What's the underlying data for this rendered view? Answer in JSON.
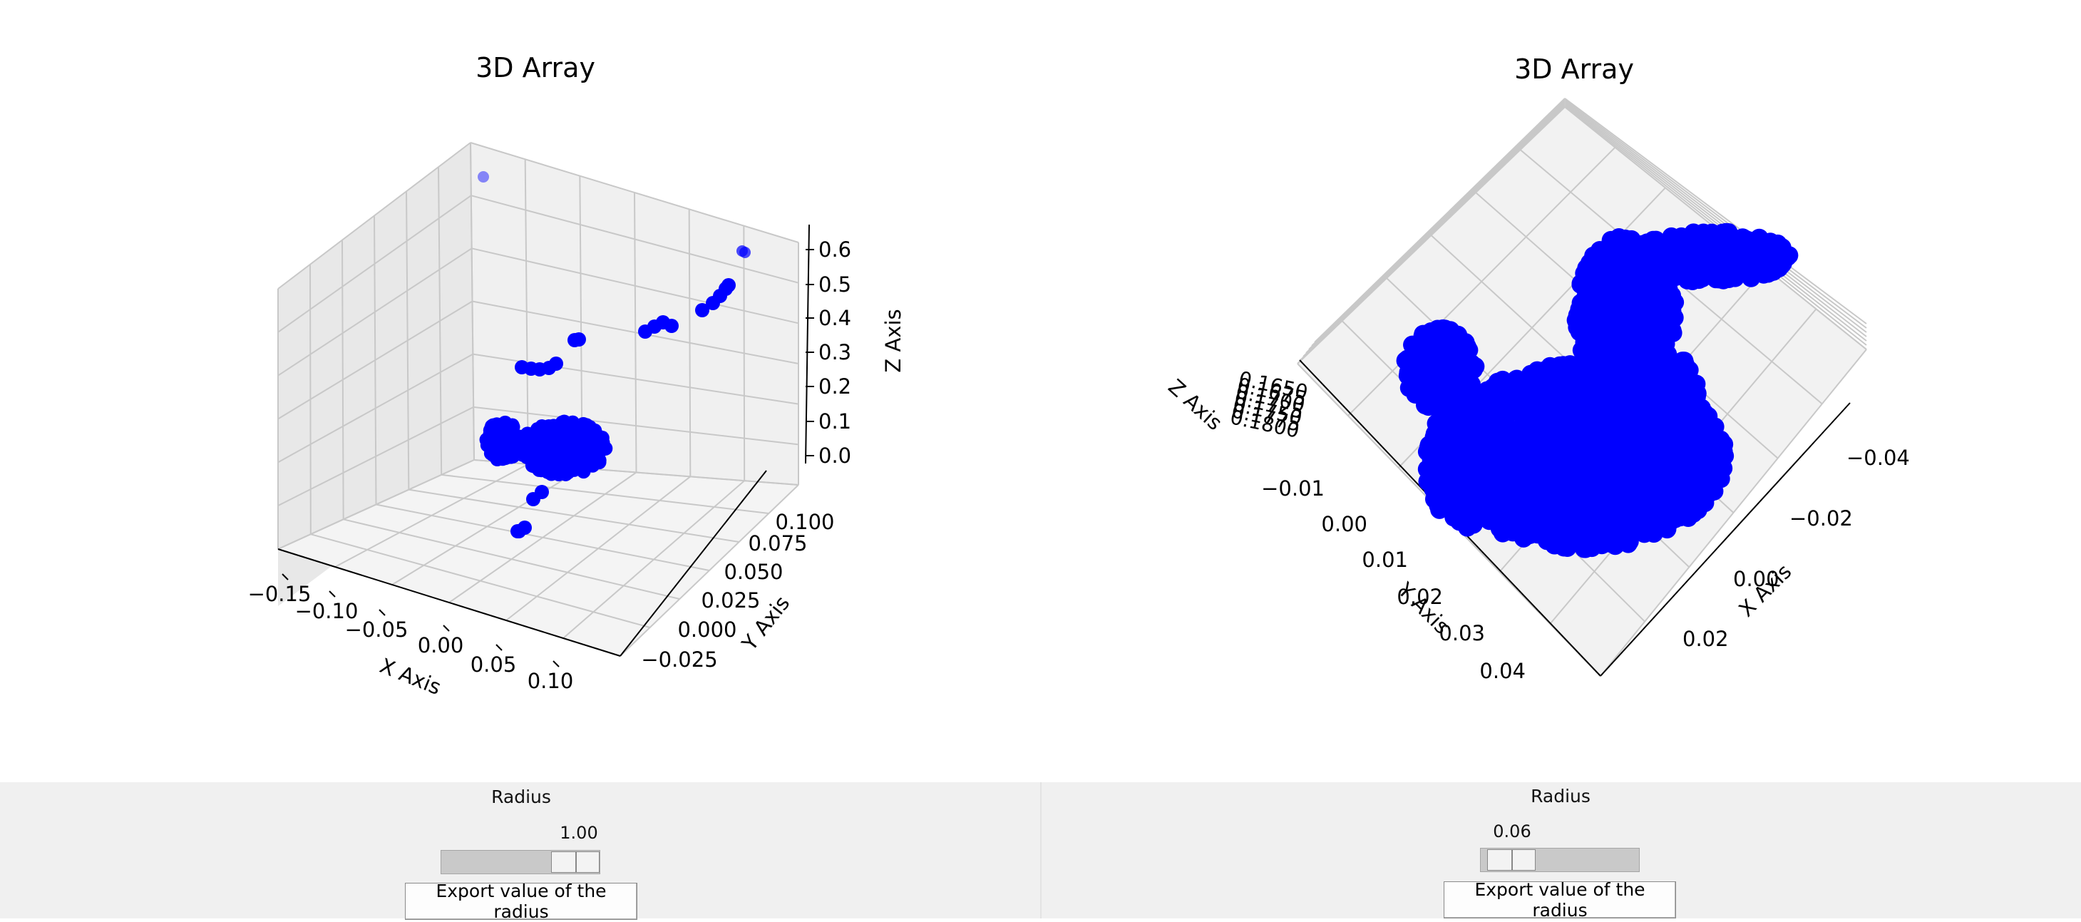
{
  "chart_data": [
    {
      "type": "scatter3d",
      "title": "3D Array",
      "xlabel": "X Axis",
      "ylabel": "Y Axis",
      "zlabel": "Z Axis",
      "x_ticks": [
        "−0.15",
        "−0.10",
        "−0.05",
        "0.00",
        "0.05",
        "0.10"
      ],
      "y_ticks": [
        "−0.025",
        "0.000",
        "0.025",
        "0.050",
        "0.075",
        "0.100"
      ],
      "z_ticks": [
        "0.0",
        "0.1",
        "0.2",
        "0.3",
        "0.4",
        "0.5",
        "0.6"
      ],
      "marker_color": "#0000ff",
      "grid": true,
      "view": "default perspective",
      "description_points": "small hand-shaped cluster near z≈0 with a sparse diagonal line of points rising to z≈0.6"
    },
    {
      "type": "scatter3d",
      "title": "3D Array",
      "xlabel": "X Axis",
      "ylabel": "Y Axis",
      "zlabel": "Z Axis",
      "x_ticks": [
        "−0.04",
        "−0.02",
        "0.00",
        "0.02"
      ],
      "y_ticks": [
        "−0.01",
        "0.00",
        "0.01",
        "0.02",
        "0.03",
        "0.04"
      ],
      "z_ticks": [
        "0.1650",
        "0.1675",
        "0.1700",
        "0.1725",
        "0.1750",
        "0.1775",
        "0.1800"
      ],
      "marker_color": "#0000ff",
      "grid": true,
      "view": "top-down rotated",
      "description_points": "dense hand-shaped point cloud"
    }
  ],
  "left_panel": {
    "radius_label": "Radius",
    "slider_value": "1.00",
    "slider_fraction": 1.0,
    "export_label": "Export value of the radius"
  },
  "right_panel": {
    "radius_label": "Radius",
    "slider_value": "0.06",
    "slider_fraction": 0.06,
    "export_label": "Export value of the radius"
  },
  "colors": {
    "marker": "#0000ff",
    "control_bg": "#f0f0f0",
    "pane_grey": "#f2f2f2"
  }
}
